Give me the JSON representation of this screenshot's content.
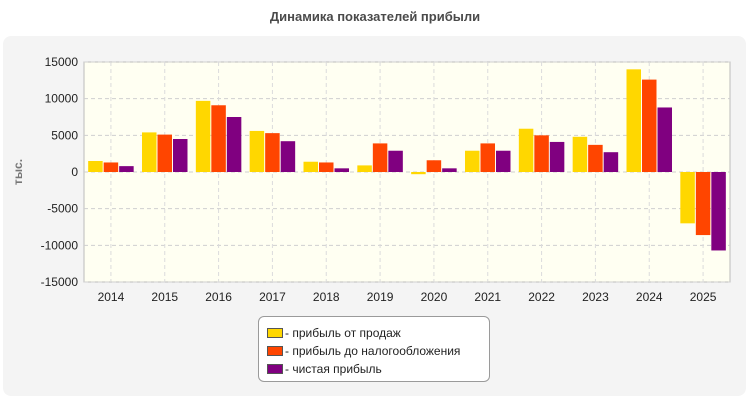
{
  "colors": {
    "sales": "#FFD700",
    "pretax": "#FF4500",
    "net": "#800080"
  },
  "chart_data": {
    "type": "bar",
    "title": "Динамика показателей прибыли",
    "ylabel": "тыс.",
    "xlabel": "",
    "ylim": [
      -15000,
      15000
    ],
    "yticks": [
      15000,
      10000,
      5000,
      0,
      -5000,
      -10000,
      -15000
    ],
    "grid": true,
    "legend_position": "bottom",
    "categories": [
      "2014",
      "2015",
      "2016",
      "2017",
      "2018",
      "2019",
      "2020",
      "2021",
      "2022",
      "2023",
      "2024",
      "2025"
    ],
    "series": [
      {
        "name": "- прибыль от продаж",
        "values": [
          1500,
          5400,
          9700,
          5600,
          1400,
          900,
          -300,
          2900,
          5900,
          4800,
          14000,
          -7000
        ]
      },
      {
        "name": "- прибыль до налогообложения",
        "values": [
          1300,
          5100,
          9100,
          5300,
          1300,
          3900,
          1600,
          3900,
          5000,
          3700,
          12600,
          -8600
        ]
      },
      {
        "name": "- чистая прибыль",
        "values": [
          800,
          4500,
          7500,
          4200,
          500,
          2900,
          500,
          2900,
          4100,
          2700,
          8800,
          -10700
        ]
      }
    ]
  }
}
